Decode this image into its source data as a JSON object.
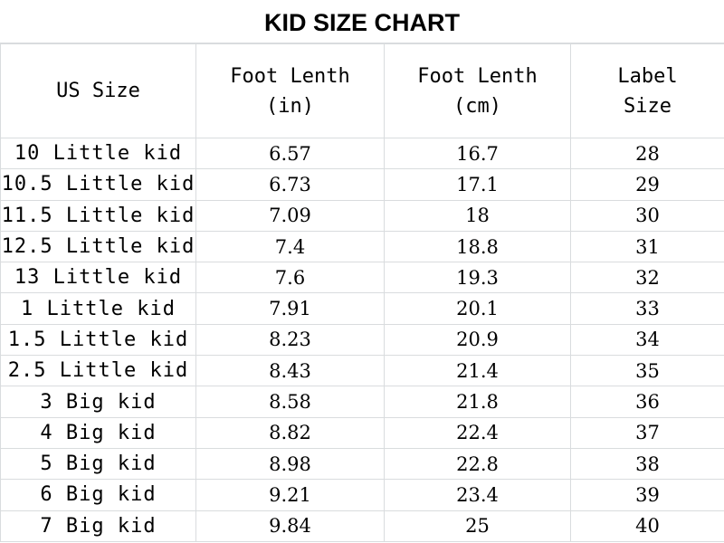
{
  "title": "KID SIZE CHART",
  "headers": {
    "us_size": "US Size",
    "foot_in_line1": "Foot Lenth",
    "foot_in_line2": "(in)",
    "foot_cm_line1": "Foot Lenth",
    "foot_cm_line2": "(cm)",
    "label_line1": "Label",
    "label_line2": "Size"
  },
  "rows": [
    {
      "us": "10 Little kid",
      "in": "6.57",
      "cm": "16.7",
      "label": "28"
    },
    {
      "us": "10.5 Little kid",
      "in": "6.73",
      "cm": "17.1",
      "label": "29"
    },
    {
      "us": "11.5 Little kid",
      "in": "7.09",
      "cm": "18",
      "label": "30"
    },
    {
      "us": "12.5 Little kid",
      "in": "7.4",
      "cm": "18.8",
      "label": "31"
    },
    {
      "us": "13 Little kid",
      "in": "7.6",
      "cm": "19.3",
      "label": "32"
    },
    {
      "us": "1 Little kid",
      "in": "7.91",
      "cm": "20.1",
      "label": "33"
    },
    {
      "us": "1.5 Little kid",
      "in": "8.23",
      "cm": "20.9",
      "label": "34"
    },
    {
      "us": "2.5 Little kid",
      "in": "8.43",
      "cm": "21.4",
      "label": "35"
    },
    {
      "us": "3 Big kid",
      "in": "8.58",
      "cm": "21.8",
      "label": "36"
    },
    {
      "us": "4 Big kid",
      "in": "8.82",
      "cm": "22.4",
      "label": "37"
    },
    {
      "us": "5 Big kid",
      "in": "8.98",
      "cm": "22.8",
      "label": "38"
    },
    {
      "us": "6 Big kid",
      "in": "9.21",
      "cm": "23.4",
      "label": "39"
    },
    {
      "us": "7 Big kid",
      "in": "9.84",
      "cm": "25",
      "label": "40"
    }
  ],
  "colors": {
    "grid": "#d9dcde",
    "text": "#000000",
    "background": "#ffffff"
  }
}
